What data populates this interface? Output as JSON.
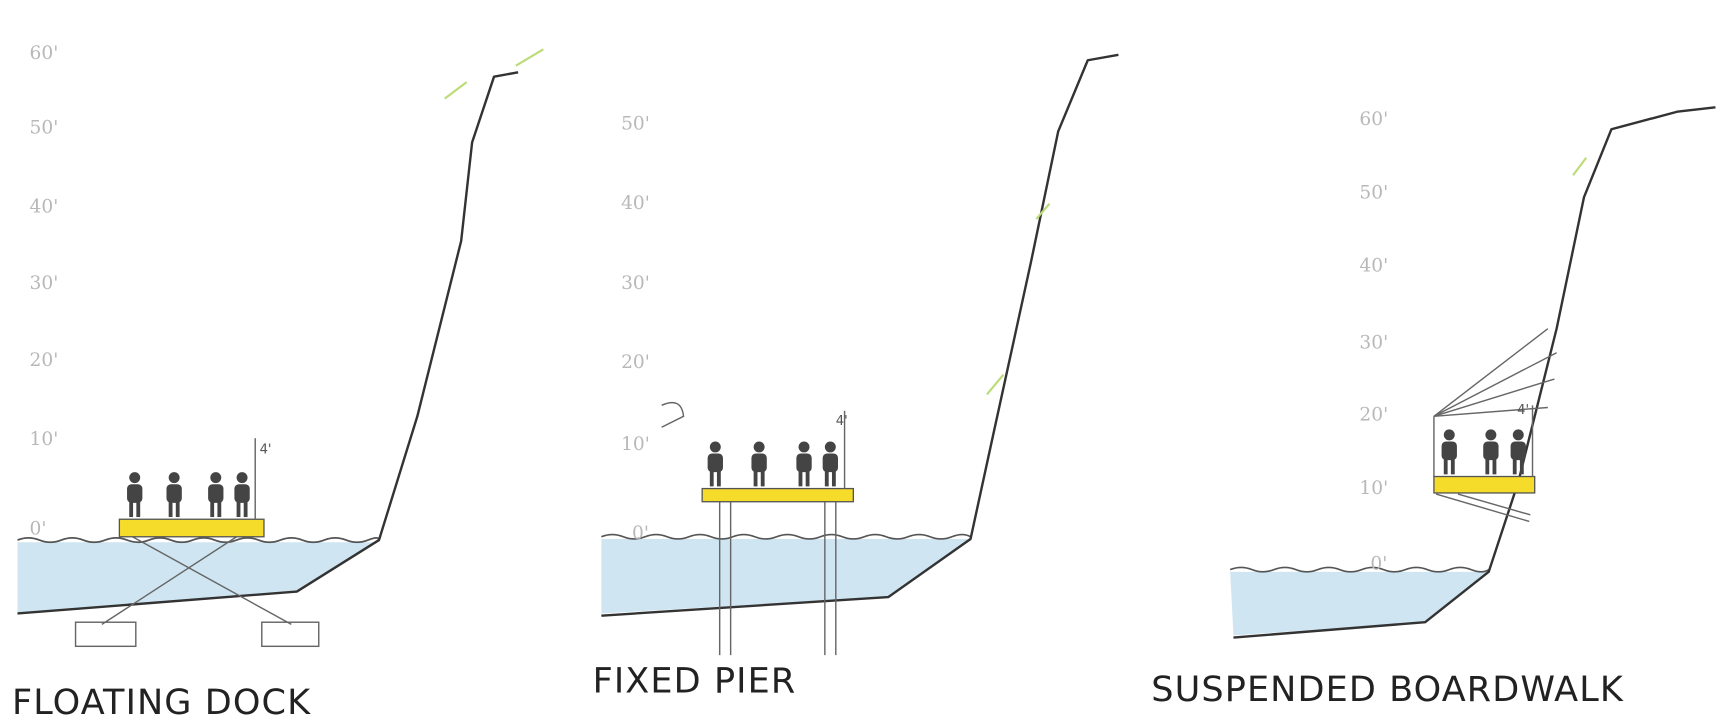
{
  "panels": [
    {
      "label": "FLOATING DOCK",
      "elevations": [
        "60'",
        "50'",
        "40'",
        "30'",
        "20'",
        "10'",
        "0'"
      ],
      "railing_height": "4'"
    },
    {
      "label": "FIXED PIER",
      "elevations": [
        "50'",
        "40'",
        "30'",
        "20'",
        "10'",
        "0'"
      ],
      "railing_height": "4'"
    },
    {
      "label": "SUSPENDED BOARDWALK",
      "elevations": [
        "60'",
        "50'",
        "40'",
        "30'",
        "20'",
        "10'",
        "0'"
      ],
      "railing_height": "4'"
    }
  ]
}
